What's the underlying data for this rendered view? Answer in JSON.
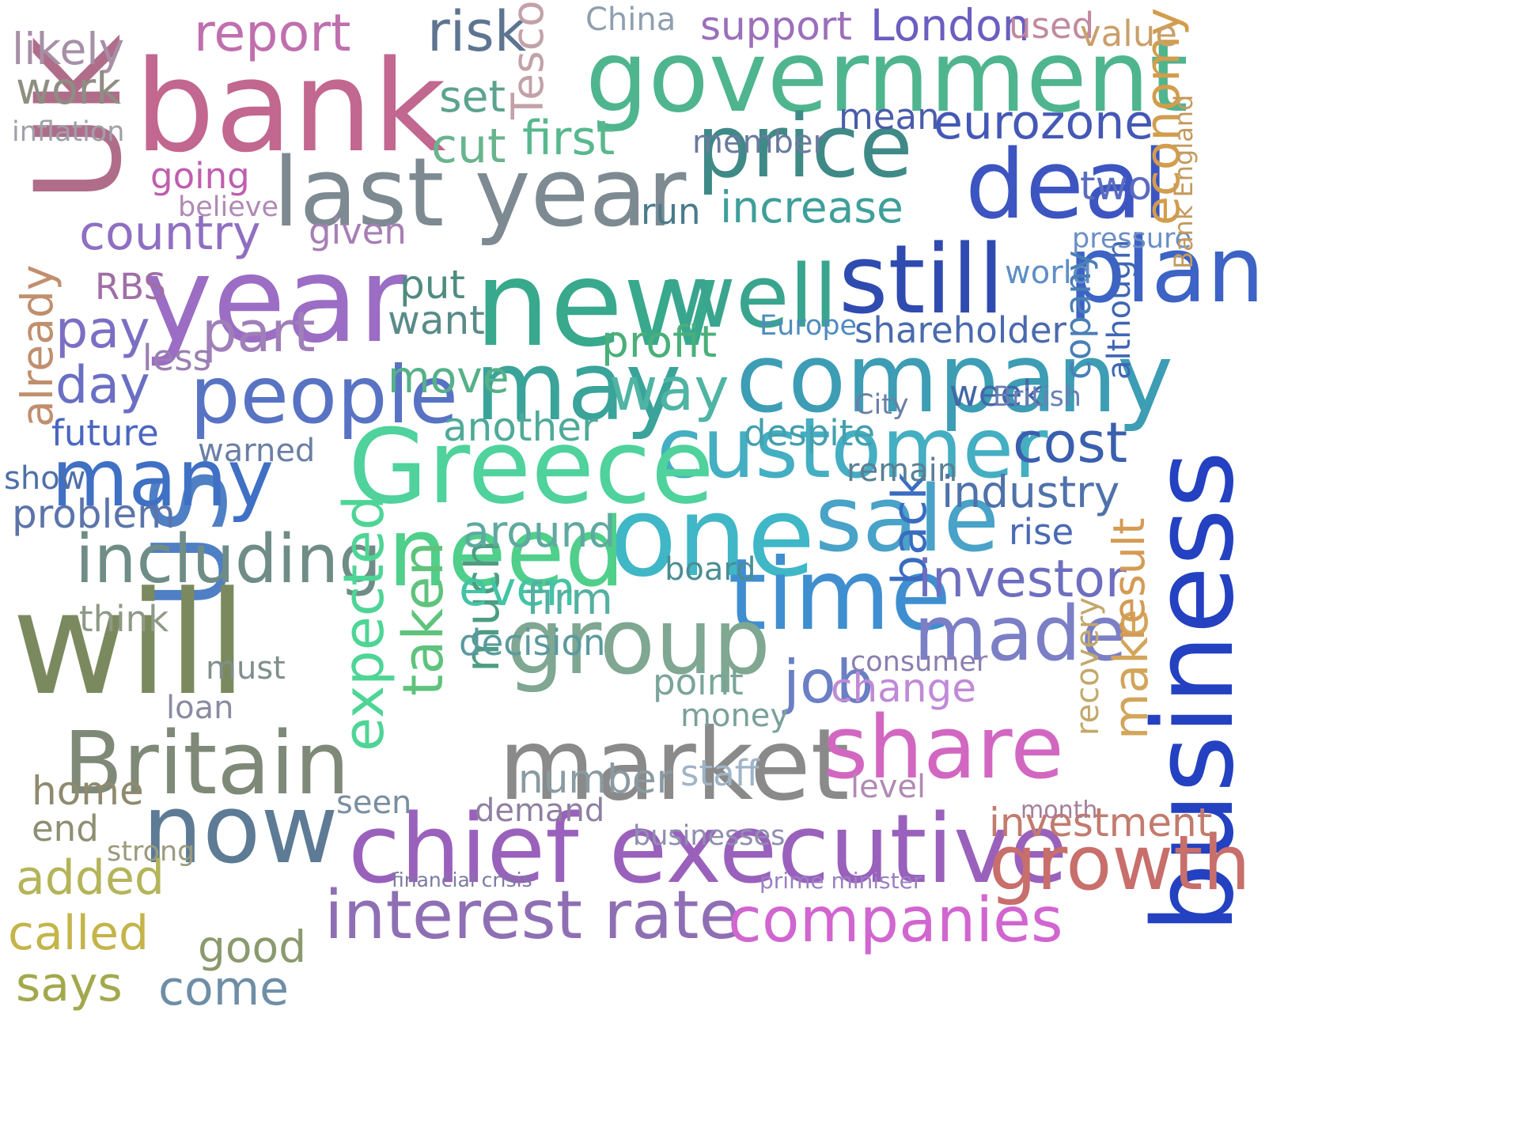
{
  "words": [
    {
      "text": "bank",
      "color": "#c2678f"
    },
    {
      "text": "UK",
      "color": "#b06d8a"
    },
    {
      "text": "government",
      "color": "#4fb58f"
    },
    {
      "text": "year",
      "color": "#9b6dc4"
    },
    {
      "text": "last year",
      "color": "#7d8a92"
    },
    {
      "text": "price",
      "color": "#3f8a86"
    },
    {
      "text": "deal",
      "color": "#3d55c1"
    },
    {
      "text": "new",
      "color": "#38a98c"
    },
    {
      "text": "well",
      "color": "#3aa58e"
    },
    {
      "text": "still",
      "color": "#2f4bb0"
    },
    {
      "text": "plan",
      "color": "#3c63c5"
    },
    {
      "text": "company",
      "color": "#3c9db4"
    },
    {
      "text": "may",
      "color": "#3aa39a"
    },
    {
      "text": "people",
      "color": "#5873c4"
    },
    {
      "text": "customer",
      "color": "#44aec2"
    },
    {
      "text": "one",
      "color": "#3fb7c6"
    },
    {
      "text": "US",
      "color": "#4f7fc4"
    },
    {
      "text": "Greece",
      "color": "#4fd29c"
    },
    {
      "text": "sale",
      "color": "#49a2c8"
    },
    {
      "text": "time",
      "color": "#3f8fd0"
    },
    {
      "text": "business",
      "color": "#2341c0"
    },
    {
      "text": "will",
      "color": "#7b8a5e"
    },
    {
      "text": "group",
      "color": "#7fa792"
    },
    {
      "text": "market",
      "color": "#8a8a8a"
    },
    {
      "text": "Britain",
      "color": "#7f8978"
    },
    {
      "text": "now",
      "color": "#5d7b94"
    },
    {
      "text": "chief executive",
      "color": "#9a61bc"
    },
    {
      "text": "interest rate",
      "color": "#8f6fb4"
    },
    {
      "text": "companies",
      "color": "#d166d0"
    },
    {
      "text": "share",
      "color": "#d267c1"
    },
    {
      "text": "growth",
      "color": "#c86e6b"
    },
    {
      "text": "made",
      "color": "#7b7fc6"
    },
    {
      "text": "many",
      "color": "#3f70c4"
    },
    {
      "text": "including",
      "color": "#6f8d86"
    },
    {
      "text": "need",
      "color": "#4fcf8a"
    },
    {
      "text": "expected",
      "color": "#4ed596"
    },
    {
      "text": "taken",
      "color": "#5fc37d"
    },
    {
      "text": "much",
      "color": "#4d9d83"
    },
    {
      "text": "economy",
      "color": "#d29d4d"
    },
    {
      "text": "eurozone",
      "color": "#4458b6"
    },
    {
      "text": "report",
      "color": "#c06fae"
    },
    {
      "text": "risk",
      "color": "#5d7590"
    },
    {
      "text": "London",
      "color": "#6a5ec0"
    },
    {
      "text": "China",
      "color": "#8f9fb0"
    },
    {
      "text": "support",
      "color": "#9b6fba"
    },
    {
      "text": "used",
      "color": "#c08a9f"
    },
    {
      "text": "value",
      "color": "#c9a06a"
    },
    {
      "text": "likely",
      "color": "#a78fa6"
    },
    {
      "text": "work",
      "color": "#8e8e83"
    },
    {
      "text": "country",
      "color": "#8f6fc2"
    },
    {
      "text": "already",
      "color": "#c08f6e"
    },
    {
      "text": "pay",
      "color": "#7b6fc4"
    },
    {
      "text": "part",
      "color": "#9f7fb9"
    },
    {
      "text": "day",
      "color": "#6a6fc4"
    },
    {
      "text": "future",
      "color": "#4a66c0"
    },
    {
      "text": "problem",
      "color": "#5c74aa"
    },
    {
      "text": "first",
      "color": "#58b88d"
    },
    {
      "text": "cut",
      "color": "#68b48e"
    },
    {
      "text": "set",
      "color": "#5ca38e"
    },
    {
      "text": "mean",
      "color": "#4a5cab"
    },
    {
      "text": "increase",
      "color": "#3f9f9a"
    },
    {
      "text": "two",
      "color": "#5a6cc0"
    },
    {
      "text": "cost",
      "color": "#3a5fae"
    },
    {
      "text": "week",
      "color": "#4368a8"
    },
    {
      "text": "industry",
      "color": "#4f72aa"
    },
    {
      "text": "back",
      "color": "#3a6cc0"
    },
    {
      "text": "investor",
      "color": "#6e6ec0"
    },
    {
      "text": "job",
      "color": "#6a7fc4"
    },
    {
      "text": "change",
      "color": "#c08ad6"
    },
    {
      "text": "make",
      "color": "#d2a55a"
    },
    {
      "text": "recovery",
      "color": "#c2a86a"
    },
    {
      "text": "result",
      "color": "#d49b54"
    },
    {
      "text": "shareholder",
      "color": "#4a6aae"
    },
    {
      "text": "want",
      "color": "#598b88"
    },
    {
      "text": "put",
      "color": "#4f8b80"
    },
    {
      "text": "move",
      "color": "#56b088"
    },
    {
      "text": "profit",
      "color": "#4aaf7a"
    },
    {
      "text": "way",
      "color": "#4fb4a4"
    },
    {
      "text": "another",
      "color": "#4faa98"
    },
    {
      "text": "despite",
      "color": "#44a0ae"
    },
    {
      "text": "around",
      "color": "#5fa9a0"
    },
    {
      "text": "even",
      "color": "#43c4a4"
    },
    {
      "text": "decision",
      "color": "#5a9a9e"
    },
    {
      "text": "firm",
      "color": "#54b0a0"
    },
    {
      "text": "board",
      "color": "#4a8e94"
    },
    {
      "text": "number",
      "color": "#8a9aa2"
    },
    {
      "text": "staff",
      "color": "#9fb4c6"
    },
    {
      "text": "demand",
      "color": "#8f7fa2"
    },
    {
      "text": "businesses",
      "color": "#8e8eb0"
    },
    {
      "text": "investment",
      "color": "#c27b6e"
    },
    {
      "text": "added",
      "color": "#b4b45a"
    },
    {
      "text": "called",
      "color": "#c4b44a"
    },
    {
      "text": "says",
      "color": "#a3a84d"
    },
    {
      "text": "come",
      "color": "#6e8ea6"
    },
    {
      "text": "good",
      "color": "#8a9a6e"
    },
    {
      "text": "home",
      "color": "#8f8a6e"
    },
    {
      "text": "end",
      "color": "#8e8f72"
    },
    {
      "text": "think",
      "color": "#8e9a86"
    },
    {
      "text": "going",
      "color": "#c05eae"
    },
    {
      "text": "given",
      "color": "#a67fb4"
    },
    {
      "text": "believe",
      "color": "#b08ab4"
    },
    {
      "text": "RBS",
      "color": "#a06ea6"
    },
    {
      "text": "less",
      "color": "#9a7fb0"
    },
    {
      "text": "warned",
      "color": "#6a7fa6"
    },
    {
      "text": "show",
      "color": "#4e70a8"
    },
    {
      "text": "inflation",
      "color": "#9fa0a8"
    },
    {
      "text": "run",
      "color": "#4a7a8c"
    },
    {
      "text": "member",
      "color": "#6a7a9e"
    },
    {
      "text": "world",
      "color": "#5f8fc4"
    },
    {
      "text": "remain",
      "color": "#5a7f96"
    },
    {
      "text": "rise",
      "color": "#4a6ab4"
    },
    {
      "text": "consumer",
      "color": "#8a7fb0"
    },
    {
      "text": "point",
      "color": "#7aa49a"
    },
    {
      "text": "money",
      "color": "#7aa09a"
    },
    {
      "text": "level",
      "color": "#b08ab4"
    },
    {
      "text": "seen",
      "color": "#7a8ea0"
    },
    {
      "text": "must",
      "color": "#808f8c"
    },
    {
      "text": "loan",
      "color": "#8a8aa2"
    },
    {
      "text": "strong",
      "color": "#9b9a7e"
    },
    {
      "text": "month",
      "color": "#a67f9a"
    },
    {
      "text": "financial crisis",
      "color": "#7a7aa2"
    },
    {
      "text": "prime minister",
      "color": "#9a7fc2"
    },
    {
      "text": "Europe",
      "color": "#4f8cc0"
    },
    {
      "text": "British",
      "color": "#6a7fb4"
    },
    {
      "text": "City",
      "color": "#6a7fa6"
    },
    {
      "text": "Tesco",
      "color": "#c2a2a8"
    },
    {
      "text": "copany",
      "color": "#4a7fb6"
    },
    {
      "text": "although",
      "color": "#3f66b4"
    },
    {
      "text": "pressure",
      "color": "#6a8ec4"
    },
    {
      "text": "Bank England",
      "color": "#c49a5e"
    }
  ]
}
